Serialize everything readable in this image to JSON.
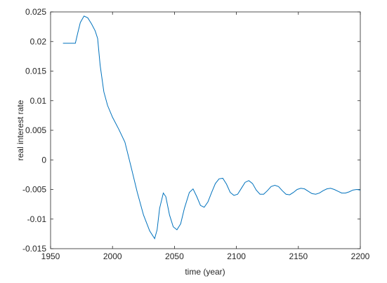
{
  "chart_data": {
    "type": "line",
    "x_label": "time (year)",
    "y_label": "real interest rate",
    "xlim": [
      1950,
      2200
    ],
    "ylim": [
      -0.015,
      0.025
    ],
    "xticks": [
      1950,
      2000,
      2050,
      2100,
      2150,
      2200
    ],
    "yticks": [
      -0.015,
      -0.01,
      -0.005,
      0,
      0.005,
      0.01,
      0.015,
      0.02,
      0.025
    ],
    "series": [
      {
        "color": "#0072BD",
        "x": [
          1960,
          1965,
          1970,
          1972,
          1974,
          1977,
          1980,
          1983,
          1986,
          1988,
          1990,
          1993,
          1996,
          2000,
          2005,
          2010,
          2015,
          2020,
          2025,
          2030,
          2034,
          2036,
          2038,
          2041,
          2043,
          2046,
          2049,
          2052,
          2055,
          2058,
          2062,
          2065,
          2068,
          2071,
          2074,
          2077,
          2080,
          2083,
          2086,
          2089,
          2092,
          2095,
          2098,
          2101,
          2104,
          2107,
          2110,
          2113,
          2116,
          2119,
          2122,
          2125,
          2128,
          2131,
          2134,
          2137,
          2140,
          2143,
          2146,
          2149,
          2152,
          2155,
          2158,
          2161,
          2164,
          2167,
          2170,
          2173,
          2176,
          2179,
          2182,
          2185,
          2188,
          2191,
          2194,
          2197,
          2200
        ],
        "values": [
          0.0197,
          0.0197,
          0.0197,
          0.0215,
          0.0232,
          0.0243,
          0.024,
          0.023,
          0.0218,
          0.0205,
          0.016,
          0.0115,
          0.0092,
          0.0072,
          0.0052,
          0.003,
          -0.0012,
          -0.0055,
          -0.0093,
          -0.012,
          -0.0133,
          -0.0118,
          -0.0082,
          -0.0056,
          -0.0062,
          -0.0093,
          -0.0113,
          -0.0118,
          -0.0108,
          -0.0082,
          -0.0055,
          -0.0049,
          -0.0062,
          -0.0077,
          -0.008,
          -0.0071,
          -0.0055,
          -0.004,
          -0.0032,
          -0.0031,
          -0.0041,
          -0.0055,
          -0.006,
          -0.0058,
          -0.0048,
          -0.0038,
          -0.0035,
          -0.004,
          -0.0051,
          -0.0058,
          -0.0058,
          -0.0052,
          -0.0045,
          -0.0043,
          -0.0045,
          -0.0052,
          -0.0058,
          -0.0059,
          -0.0055,
          -0.005,
          -0.0048,
          -0.0049,
          -0.0053,
          -0.0057,
          -0.0058,
          -0.0056,
          -0.0052,
          -0.0049,
          -0.0048,
          -0.005,
          -0.0053,
          -0.0056,
          -0.0056,
          -0.0054,
          -0.0051,
          -0.005,
          -0.0051
        ]
      }
    ]
  }
}
